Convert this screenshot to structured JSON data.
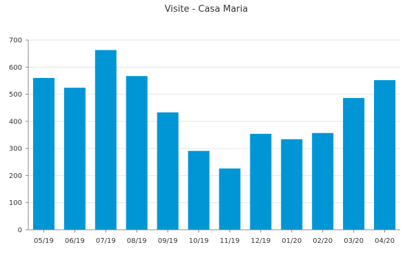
{
  "chart_data": {
    "type": "bar",
    "title": "Visite - Casa Maria",
    "xlabel": "",
    "ylabel": "",
    "categories": [
      "05/19",
      "06/19",
      "07/19",
      "08/19",
      "09/19",
      "10/19",
      "11/19",
      "12/19",
      "01/20",
      "02/20",
      "03/20",
      "04/20"
    ],
    "values": [
      560,
      524,
      663,
      567,
      433,
      291,
      226,
      354,
      334,
      357,
      486,
      552
    ],
    "ylim": [
      0,
      700
    ],
    "yticks": [
      0,
      100,
      200,
      300,
      400,
      500,
      600,
      700
    ],
    "grid": true,
    "legend": "none",
    "colors": {
      "bar": "#0096d6",
      "grid": "#e4e4e4",
      "axis": "#888888"
    }
  }
}
